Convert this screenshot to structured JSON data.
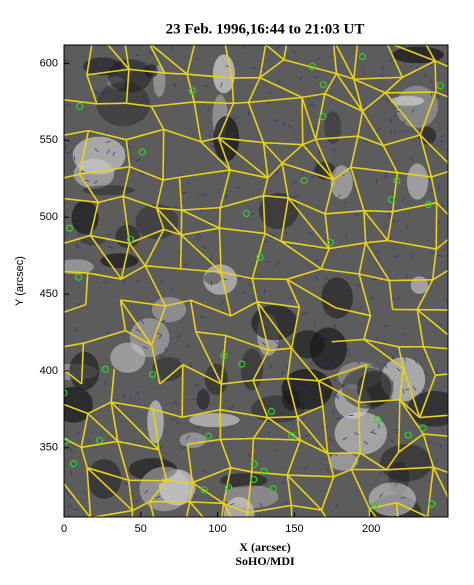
{
  "figure": {
    "title": "23 Feb. 1996,16:44 to 21:03 UT",
    "x_label": "X (arcsec)",
    "y_label": "Y (arcsec)",
    "credit": "SoHO/MDI",
    "xlim": [
      0,
      250
    ],
    "ylim": [
      305,
      612
    ],
    "xticks": [
      0,
      50,
      100,
      150,
      200
    ],
    "yticks": [
      350,
      400,
      450,
      500,
      550,
      600
    ]
  }
}
